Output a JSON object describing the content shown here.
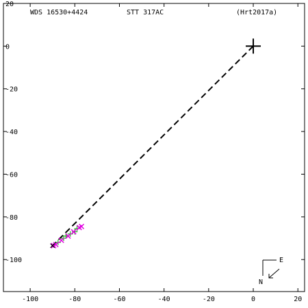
{
  "header": {
    "wds": "WDS 16530+4424",
    "pair": "STT 317AC",
    "ref": "(Hrt2017a)"
  },
  "compass": {
    "east": "E",
    "north": "N"
  },
  "chart_data": {
    "type": "scatter",
    "title": "",
    "xlabel": "",
    "ylabel": "",
    "xlim": [
      -112,
      23
    ],
    "ylim": [
      -115,
      20
    ],
    "x_ticks": [
      -100,
      -80,
      -60,
      -40,
      -20,
      0,
      20
    ],
    "y_ticks": [
      20,
      0,
      -20,
      -40,
      -60,
      -80,
      -100
    ],
    "grid": false,
    "primary": {
      "x": 0,
      "y": 0
    },
    "orbit_line": {
      "from": [
        0,
        0
      ],
      "to": [
        -90,
        -93.5
      ],
      "style": "dashed"
    },
    "colors": {
      "green": "#00a000",
      "magenta": "#e000e0",
      "axis": "#000000"
    },
    "series": [
      {
        "color": "green",
        "marker": "plus",
        "points": [
          [
            -87.5,
            -92
          ],
          [
            -85,
            -90
          ],
          [
            -82,
            -88
          ],
          [
            -80,
            -87
          ],
          [
            -79,
            -85.5
          ],
          [
            -84,
            -89
          ]
        ]
      },
      {
        "color": "magenta",
        "marker": "cross",
        "points": [
          [
            -89.5,
            -93.5
          ],
          [
            -88.5,
            -93
          ],
          [
            -86,
            -91
          ],
          [
            -83,
            -89
          ],
          [
            -80.5,
            -87
          ],
          [
            -78,
            -85
          ],
          [
            -77,
            -84.5
          ]
        ]
      },
      {
        "color": "black",
        "marker": "x-small",
        "points": [
          [
            -90,
            -93.5
          ]
        ]
      }
    ]
  }
}
